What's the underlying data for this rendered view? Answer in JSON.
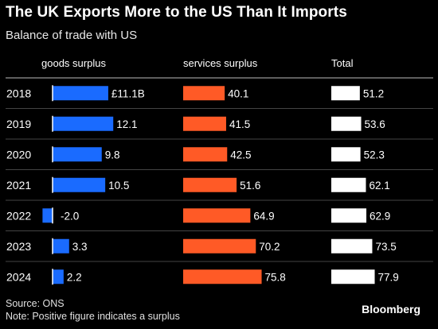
{
  "title": "The UK Exports More to the US Than It Imports",
  "subtitle": "Balance of trade with US",
  "columns": {
    "goods": "goods surplus",
    "services": "services surplus",
    "total": "Total"
  },
  "footer": {
    "source": "Source: ONS",
    "note": "Note: Positive figure indicates a surplus",
    "brand": "Bloomberg"
  },
  "colors": {
    "goods": "#1a6bff",
    "services": "#ff5a26",
    "total": "#ffffff",
    "background": "#000000"
  },
  "chart_data": {
    "type": "bar",
    "title": "The UK Exports More to the US Than It Imports",
    "subtitle": "Balance of trade with US",
    "categories": [
      "2018",
      "2019",
      "2020",
      "2021",
      "2022",
      "2023",
      "2024"
    ],
    "series": [
      {
        "name": "goods surplus",
        "values": [
          11.1,
          12.1,
          9.8,
          10.5,
          -2.0,
          3.3,
          2.2
        ],
        "labels": [
          "£11.1B",
          "12.1",
          "9.8",
          "10.5",
          "-2.0",
          "3.3",
          "2.2"
        ]
      },
      {
        "name": "services surplus",
        "values": [
          40.1,
          41.5,
          42.5,
          51.6,
          64.9,
          70.2,
          75.8
        ],
        "labels": [
          "40.1",
          "41.5",
          "42.5",
          "51.6",
          "64.9",
          "70.2",
          "75.8"
        ]
      },
      {
        "name": "Total",
        "values": [
          51.2,
          53.6,
          52.3,
          62.1,
          62.9,
          73.5,
          77.9
        ],
        "labels": [
          "51.2",
          "53.6",
          "52.3",
          "62.1",
          "62.9",
          "73.5",
          "77.9"
        ]
      }
    ],
    "units": "£ billions",
    "grid": false,
    "legend": "column headers"
  }
}
